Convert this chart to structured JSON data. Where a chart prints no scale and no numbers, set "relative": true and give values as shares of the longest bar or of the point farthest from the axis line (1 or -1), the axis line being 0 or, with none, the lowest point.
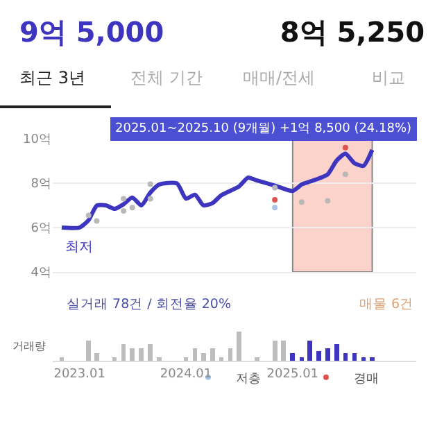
{
  "chart_data": [
    {
      "type": "other",
      "annotations": [
        "9억 5,000",
        "8억 5,250",
        "최근 3년",
        "전체 기간",
        "매매/전세",
        "비교"
      ]
    },
    {
      "type": "line",
      "xlim": [
        "2022-10",
        "2026-03"
      ],
      "xticks": [
        {
          "value": "2023-01",
          "label": null
        },
        {
          "value": "2024-01",
          "label": null
        },
        {
          "value": "2025-01",
          "label": null
        }
      ],
      "ylim": [
        4,
        10
      ],
      "yticks": [
        {
          "value": 4,
          "label": "4억"
        },
        {
          "value": 6,
          "label": "6억"
        },
        {
          "value": 8,
          "label": "8억"
        },
        {
          "value": 10,
          "label": "10억"
        }
      ],
      "grid": "y",
      "tick_labels": "y",
      "legend": "bottom right",
      "line_style": "solid",
      "series": [
        {
          "type": "line",
          "color": "#3d35c0",
          "x": [
            "2022-11",
            "2023-01",
            "2023-02",
            "2023-03",
            "2023-04",
            "2023-05",
            "2023-06",
            "2023-07",
            "2023-08",
            "2023-09",
            "2023-10",
            "2023-12",
            "2024-01",
            "2024-02",
            "2024-03",
            "2024-04",
            "2024-05",
            "2024-07",
            "2024-08",
            "2024-09",
            "2024-11",
            "2025-01",
            "2025-02",
            "2025-03",
            "2025-04",
            "2025-05",
            "2025-06",
            "2025-07",
            "2025-08",
            "2025-09",
            "2025-10"
          ],
          "values": [
            6.0,
            6.0,
            6.33,
            6.99,
            7.0,
            6.84,
            7.05,
            7.35,
            7.0,
            7.58,
            7.94,
            7.99,
            7.3,
            7.48,
            7.0,
            7.1,
            7.45,
            7.85,
            8.25,
            8.12,
            7.89,
            7.65,
            7.94,
            8.07,
            8.21,
            8.39,
            9.02,
            9.33,
            8.9,
            8.78,
            9.5
          ]
        },
        {
          "type": "scatter",
          "color": "#b8b8b8",
          "x": [
            "2023-02",
            "2023-03",
            "2023-06",
            "2023-06",
            "2023-07",
            "2023-09",
            "2023-09",
            "2024-11",
            "2025-02",
            "2025-05",
            "2025-07"
          ],
          "values": [
            6.55,
            6.3,
            7.3,
            6.75,
            6.9,
            7.95,
            7.3,
            7.8,
            7.15,
            7.2,
            8.4
          ]
        },
        {
          "type": "scatter",
          "name": "저층",
          "color": "#a9c4e8",
          "x": [
            "2024-11"
          ],
          "values": [
            6.9
          ]
        },
        {
          "type": "scatter",
          "name": "경매",
          "color": "#e0524f",
          "x": [
            "2024-11",
            "2025-07"
          ],
          "values": [
            7.25,
            9.6
          ]
        }
      ],
      "bands": [
        {
          "axis": "x",
          "from": "2025-01",
          "to": "2025-10",
          "color": "#fbd3cb"
        }
      ],
      "annotations": [
        "2025.01~2025.10 (9개월) +1억 8,500 (24.18%)",
        {
          "text": "최저",
          "x": "2023-01",
          "y": 6.0
        }
      ]
    },
    {
      "type": "bar",
      "relative": true,
      "xlim": [
        "2022-10",
        "2026-03"
      ],
      "xticks": [
        {
          "value": "2023-01",
          "label": "2023.01"
        },
        {
          "value": "2024-01",
          "label": "2024.01"
        },
        {
          "value": "2025-01",
          "label": "2025.01"
        }
      ],
      "tick_labels": "x",
      "grid": false,
      "ylabel": "거래량",
      "x": [
        "2022-11",
        "2023-02",
        "2023-03",
        "2023-05",
        "2023-06",
        "2023-07",
        "2023-08",
        "2023-09",
        "2023-10",
        "2024-01",
        "2024-02",
        "2024-03",
        "2024-04",
        "2024-05",
        "2024-06",
        "2024-07",
        "2024-09",
        "2024-11",
        "2024-12",
        "2025-01",
        "2025-02",
        "2025-03",
        "2025-04",
        "2025-05",
        "2025-06",
        "2025-07",
        "2025-08",
        "2025-09",
        "2025-10"
      ],
      "values": [
        0.12,
        0.69,
        0.26,
        0.12,
        0.57,
        0.43,
        0.43,
        0.57,
        0.12,
        0.12,
        0.43,
        0.26,
        0.43,
        0.12,
        0.43,
        1,
        0.12,
        0.69,
        0.69,
        0.26,
        0.12,
        0.69,
        0.34,
        0.43,
        0.57,
        0.26,
        0.26,
        0.12,
        0.12
      ],
      "colors": [
        "#bdbdbd",
        "#bdbdbd",
        "#bdbdbd",
        "#bdbdbd",
        "#bdbdbd",
        "#bdbdbd",
        "#bdbdbd",
        "#bdbdbd",
        "#bdbdbd",
        "#bdbdbd",
        "#bdbdbd",
        "#bdbdbd",
        "#bdbdbd",
        "#bdbdbd",
        "#bdbdbd",
        "#bdbdbd",
        "#bdbdbd",
        "#bdbdbd",
        "#bdbdbd",
        "#3d35c0",
        "#3d35c0",
        "#3d35c0",
        "#3d35c0",
        "#3d35c0",
        "#3d35c0",
        "#3d35c0",
        "#3d35c0",
        "#3d35c0",
        "#3d35c0"
      ],
      "annotations": [
        "실거래 78건 / 회전율 20%",
        "매물 6건"
      ]
    }
  ]
}
